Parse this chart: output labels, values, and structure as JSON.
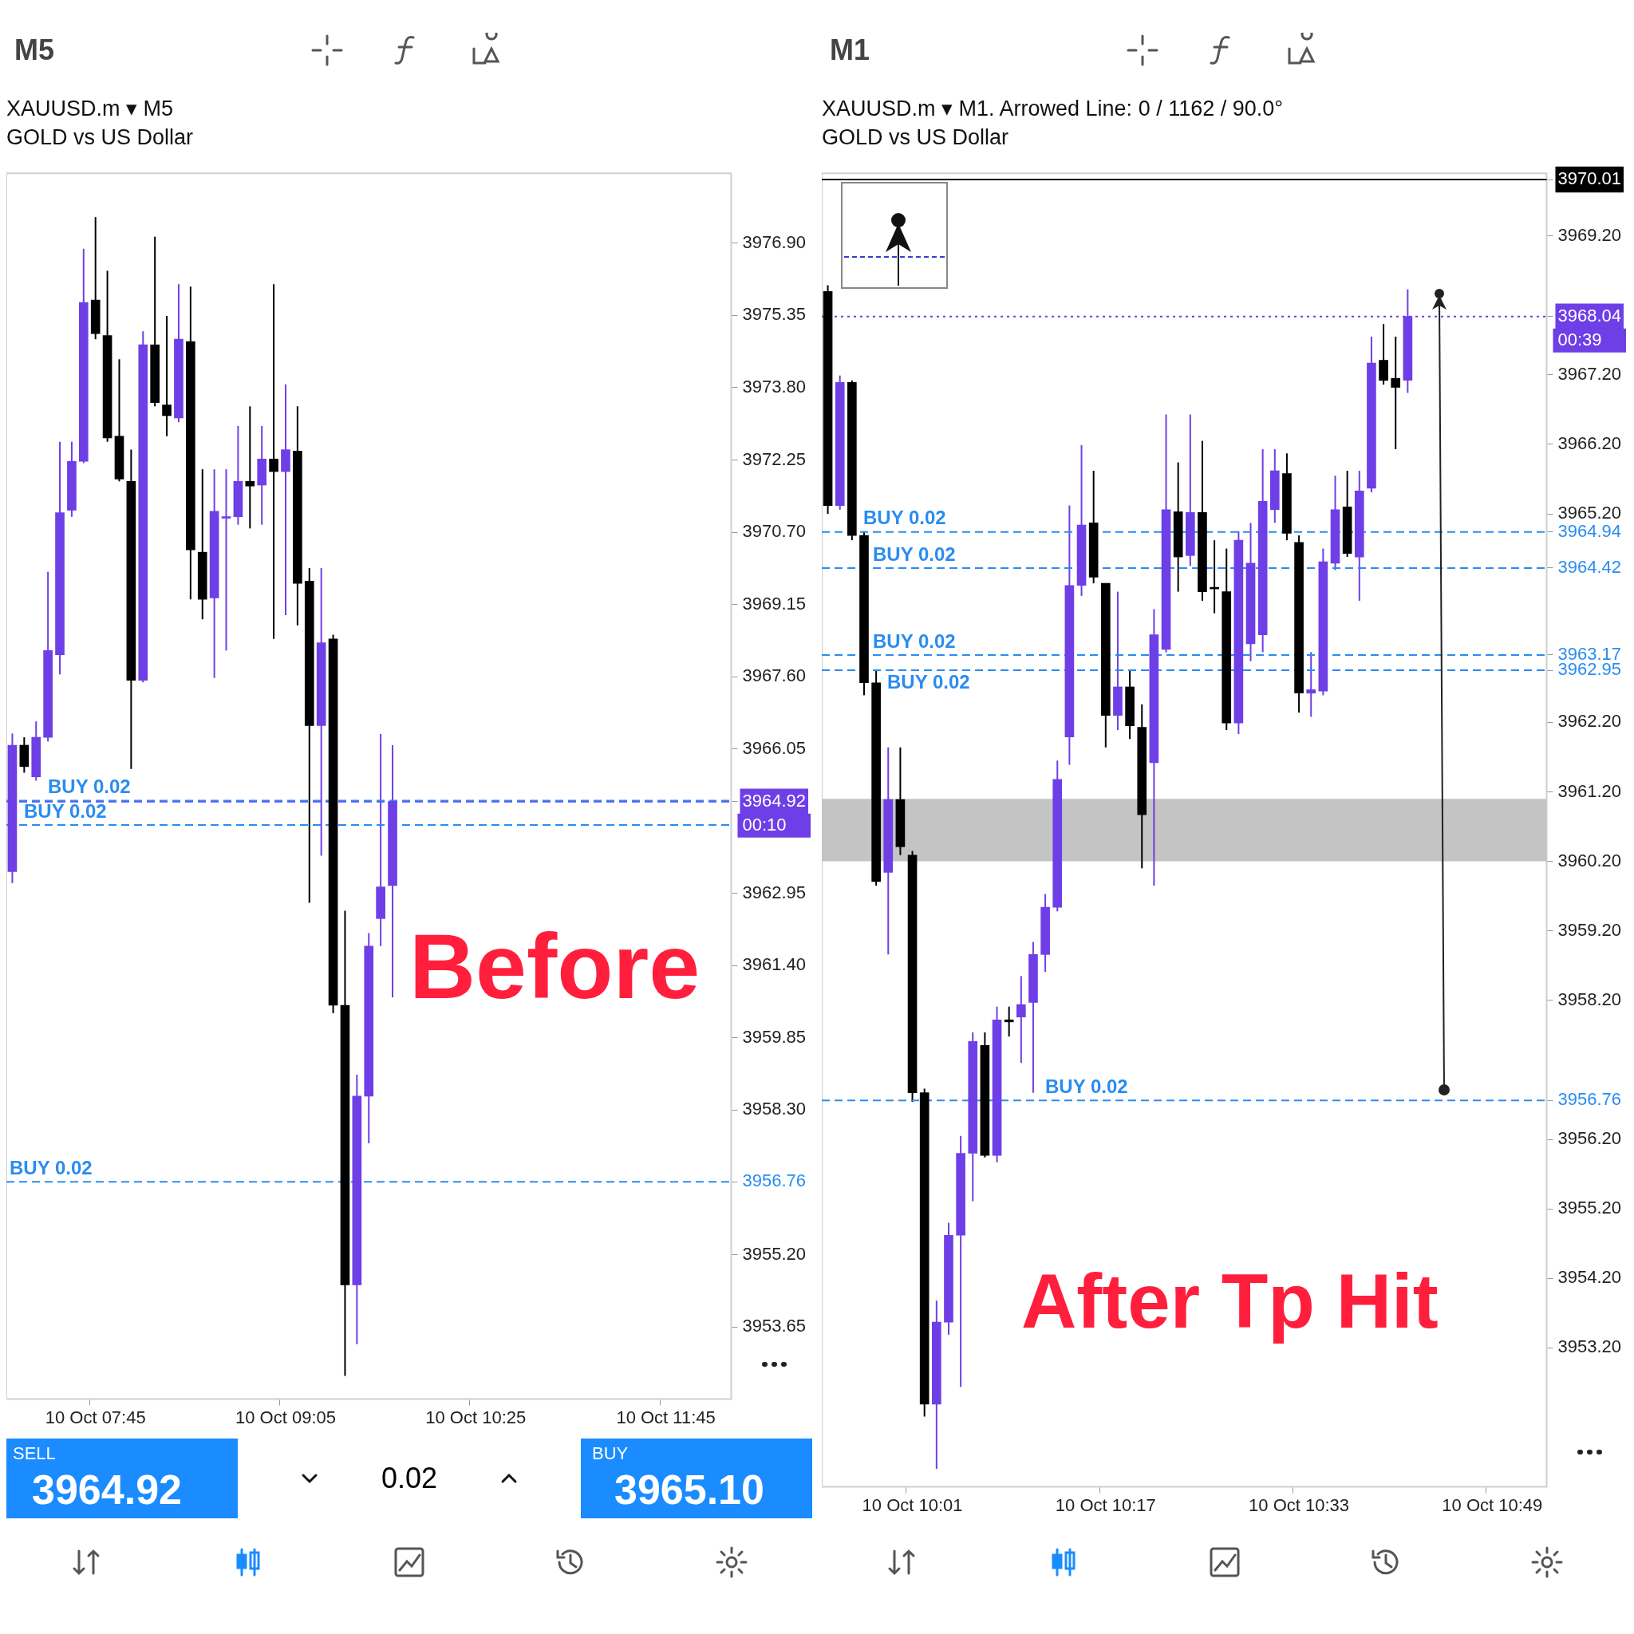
{
  "chart_data": [
    {
      "type": "candlestick",
      "title": "XAUUSD.m ▾ M5",
      "subtitle": "GOLD vs US Dollar",
      "categories": [
        null,
        null,
        null,
        null,
        null,
        null,
        null,
        "10 Oct 07:45",
        null,
        null,
        null,
        null,
        null,
        null,
        null,
        null,
        null,
        null,
        null,
        null,
        null,
        null,
        null,
        "10 Oct 09:05",
        null,
        null,
        null,
        null,
        null,
        null,
        null,
        null,
        null,
        null,
        null,
        null,
        null,
        null,
        null,
        "10 Oct 10:25",
        null,
        null,
        null,
        null,
        null,
        null,
        null,
        null,
        null,
        null,
        null,
        null,
        null,
        null,
        null,
        "10 Oct 11:45",
        null,
        null,
        null,
        null,
        null
      ],
      "ohlc": [
        [
          3963.42,
          3966.38,
          3963.17,
          3966.13
        ],
        [
          3966.13,
          3966.3,
          3965.54,
          3965.67
        ],
        [
          3965.45,
          3966.64,
          3965.37,
          3966.3
        ],
        [
          3966.3,
          3969.85,
          3966.21,
          3968.16
        ],
        [
          3968.07,
          3972.64,
          3967.65,
          3971.12
        ],
        [
          3971.17,
          3972.64,
          3971.03,
          3972.22
        ],
        [
          3972.22,
          3976.78,
          3972.18,
          3975.63
        ],
        [
          3975.68,
          3977.46,
          3974.84,
          3974.96
        ],
        [
          3974.92,
          3976.31,
          3972.64,
          3972.72
        ],
        [
          3972.76,
          3974.41,
          3971.79,
          3971.84
        ],
        [
          3971.79,
          3972.47,
          3965.62,
          3967.52
        ],
        [
          3967.52,
          3975.01,
          3967.48,
          3974.72
        ],
        [
          3974.72,
          3977.04,
          3973.4,
          3973.48
        ],
        [
          3973.43,
          3975.34,
          3972.76,
          3973.2
        ],
        [
          3973.15,
          3976.02,
          3973.06,
          3974.84
        ],
        [
          3974.79,
          3975.97,
          3969.26,
          3970.32
        ],
        [
          3970.27,
          3972.05,
          3968.83,
          3969.26
        ],
        [
          3969.29,
          3972.05,
          3967.57,
          3971.15
        ],
        [
          3971.0,
          3972.05,
          3968.16,
          3971.03
        ],
        [
          3971.03,
          3972.98,
          3970.86,
          3971.79
        ],
        [
          3971.79,
          3973.4,
          3970.78,
          3971.69
        ],
        [
          3971.71,
          3972.98,
          3970.86,
          3972.27
        ],
        [
          3972.27,
          3976.02,
          3968.41,
          3972.0
        ],
        [
          3972.0,
          3973.87,
          3968.92,
          3972.47
        ],
        [
          3972.44,
          3973.4,
          3968.7,
          3969.6
        ],
        [
          3969.65,
          3969.93,
          3962.75,
          3966.55
        ],
        [
          3966.55,
          3969.93,
          3963.76,
          3968.33
        ],
        [
          3968.41,
          3968.5,
          3960.38,
          3960.55
        ],
        [
          3960.55,
          3962.58,
          3952.6,
          3954.55
        ],
        [
          3954.55,
          3959.06,
          3953.28,
          3958.6
        ],
        [
          3958.6,
          3962.1,
          3957.59,
          3961.82
        ],
        [
          3962.41,
          3966.37,
          3961.82,
          3963.09
        ],
        [
          3963.12,
          3966.13,
          3960.72,
          3964.92
        ],
        null,
        null,
        null,
        null,
        null,
        null,
        null,
        null,
        null,
        null,
        null,
        null,
        null,
        null,
        null,
        null,
        null,
        null,
        null,
        null,
        null,
        null,
        null,
        null,
        null,
        null,
        null,
        null
      ],
      "colors": [
        "#6e3fe6",
        "#000000",
        "#6e3fe6",
        "#6e3fe6",
        "#6e3fe6",
        "#6e3fe6",
        "#6e3fe6",
        "#000000",
        "#000000",
        "#000000",
        "#000000",
        "#6e3fe6",
        "#000000",
        "#000000",
        "#6e3fe6",
        "#000000",
        "#000000",
        "#6e3fe6",
        "#6e3fe6",
        "#6e3fe6",
        "#000000",
        "#6e3fe6",
        "#000000",
        "#6e3fe6",
        "#000000",
        "#000000",
        "#6e3fe6",
        "#000000",
        "#000000",
        "#6e3fe6",
        "#6e3fe6",
        "#6e3fe6",
        "#6e3fe6",
        null,
        null,
        null,
        null,
        null,
        null,
        null,
        null,
        null,
        null,
        null,
        null,
        null,
        null,
        null,
        null,
        null,
        null,
        null,
        null,
        null,
        null,
        null,
        null,
        null,
        null,
        null,
        null
      ],
      "ylim": [
        3952.1,
        3978.4
      ],
      "yticks": [
        {
          "value": 3953.65,
          "label": "3953.65"
        },
        {
          "value": 3955.2,
          "label": "3955.20"
        },
        {
          "value": 3956.76,
          "label": "3956.76"
        },
        {
          "value": 3958.3,
          "label": "3958.30"
        },
        {
          "value": 3959.85,
          "label": "3959.85"
        },
        {
          "value": 3961.4,
          "label": "3961.40"
        },
        {
          "value": 3962.95,
          "label": "3962.95"
        },
        {
          "value": 3964.92,
          "label": "3964.92"
        },
        {
          "value": 3966.05,
          "label": "3966.05"
        },
        {
          "value": 3967.6,
          "label": "3967.60"
        },
        {
          "value": 3969.15,
          "label": "3969.15"
        },
        {
          "value": 3970.7,
          "label": "3970.70"
        },
        {
          "value": 3972.25,
          "label": "3972.25"
        },
        {
          "value": 3973.8,
          "label": "3973.80"
        },
        {
          "value": 3975.35,
          "label": "3975.35"
        },
        {
          "value": 3976.9,
          "label": "3976.90"
        }
      ],
      "ref_lines": [
        {
          "axis": "y",
          "value": 3964.92,
          "color": "#6e3fe6",
          "line_style": "dashed"
        },
        {
          "axis": "y",
          "value": 3964.94,
          "label": "BUY 0.02",
          "color": "#2a8cf0",
          "line_style": "dashed"
        },
        {
          "axis": "y",
          "value": 3964.42,
          "label": "BUY 0.02",
          "color": "#2a8cf0",
          "line_style": "dashed"
        },
        {
          "axis": "y",
          "value": 3956.76,
          "label": "BUY 0.02",
          "color": "#2a8cf0",
          "line_style": "dashed"
        }
      ],
      "annotations": [
        "Before",
        "00:10",
        "M5",
        "SELL",
        "3964.92",
        "0.02",
        "BUY",
        "3965.10"
      ],
      "legend": false
    },
    {
      "type": "candlestick",
      "title": "XAUUSD.m ▾ M1. Arrowed Line: 0 / 1162 / 90.0°",
      "subtitle": "GOLD vs US Dollar",
      "categories": [
        null,
        null,
        null,
        null,
        null,
        null,
        null,
        "10 Oct 10:01",
        null,
        null,
        null,
        null,
        null,
        null,
        null,
        null,
        null,
        null,
        null,
        null,
        null,
        null,
        null,
        "10 Oct 10:17",
        null,
        null,
        null,
        null,
        null,
        null,
        null,
        null,
        null,
        null,
        null,
        null,
        null,
        null,
        null,
        "10 Oct 10:33",
        null,
        null,
        null,
        null,
        null,
        null,
        null,
        null,
        null,
        null,
        null,
        null,
        null,
        null,
        null,
        "10 Oct 10:49",
        null,
        null,
        null,
        null
      ],
      "ohlc": [
        [
          3968.4,
          3968.49,
          3965.2,
          3965.32
        ],
        [
          3965.32,
          3967.19,
          3965.26,
          3967.09
        ],
        [
          3967.09,
          3967.12,
          3964.82,
          3964.89
        ],
        [
          3964.89,
          3964.95,
          3962.59,
          3962.77
        ],
        [
          3962.77,
          3962.96,
          3959.85,
          3959.91
        ],
        [
          3960.04,
          3961.84,
          3958.86,
          3961.09
        ],
        [
          3961.09,
          3961.84,
          3960.29,
          3960.41
        ],
        [
          3960.29,
          3960.35,
          3956.74,
          3956.87
        ],
        [
          3956.87,
          3956.93,
          3952.21,
          3952.39
        ],
        [
          3952.39,
          3953.88,
          3951.46,
          3953.57
        ],
        [
          3953.57,
          3955.0,
          3953.39,
          3954.82
        ],
        [
          3954.82,
          3956.25,
          3952.64,
          3956.0
        ],
        [
          3956.0,
          3957.74,
          3955.31,
          3957.61
        ],
        [
          3957.55,
          3957.74,
          3955.94,
          3955.97
        ],
        [
          3955.97,
          3958.11,
          3955.87,
          3957.92
        ],
        [
          3957.92,
          3958.11,
          3957.68,
          3957.89
        ],
        [
          3957.96,
          3958.55,
          3957.3,
          3958.14
        ],
        [
          3958.17,
          3959.04,
          3956.87,
          3958.86
        ],
        [
          3958.86,
          3959.73,
          3958.61,
          3959.54
        ],
        [
          3959.54,
          3961.65,
          3959.48,
          3961.38
        ],
        [
          3961.99,
          3965.32,
          3961.59,
          3964.17
        ],
        [
          3964.17,
          3966.19,
          3964.02,
          3965.04
        ],
        [
          3965.07,
          3965.82,
          3964.2,
          3964.29
        ],
        [
          3964.2,
          3964.2,
          3961.84,
          3962.3
        ],
        [
          3962.3,
          3964.08,
          3962.09,
          3962.71
        ],
        [
          3962.71,
          3962.96,
          3961.96,
          3962.15
        ],
        [
          3962.13,
          3962.46,
          3960.1,
          3960.87
        ],
        [
          3961.62,
          3963.83,
          3959.85,
          3963.46
        ],
        [
          3963.25,
          3966.63,
          3963.21,
          3965.26
        ],
        [
          3965.23,
          3965.94,
          3964.08,
          3964.58
        ],
        [
          3964.6,
          3966.63,
          3964.45,
          3965.22
        ],
        [
          3965.22,
          3966.25,
          3963.95,
          3964.08
        ],
        [
          3964.14,
          3964.82,
          3963.77,
          3964.12
        ],
        [
          3964.08,
          3964.7,
          3962.09,
          3962.19
        ],
        [
          3962.19,
          3964.95,
          3962.03,
          3964.82
        ],
        [
          3963.33,
          3965.07,
          3963.08,
          3964.49
        ],
        [
          3963.46,
          3966.13,
          3963.21,
          3965.38
        ],
        [
          3965.26,
          3966.13,
          3965.07,
          3965.82
        ],
        [
          3965.78,
          3966.07,
          3964.82,
          3964.92
        ],
        [
          3964.79,
          3964.89,
          3962.34,
          3962.62
        ],
        [
          3962.62,
          3963.21,
          3962.28,
          3962.67
        ],
        [
          3962.65,
          3964.7,
          3962.59,
          3964.51
        ],
        [
          3964.49,
          3965.75,
          3964.39,
          3965.26
        ],
        [
          3965.3,
          3965.82,
          3964.58,
          3964.63
        ],
        [
          3964.58,
          3965.82,
          3963.95,
          3965.53
        ],
        [
          3965.57,
          3967.75,
          3965.51,
          3967.37
        ],
        [
          3967.41,
          3967.93,
          3967.06,
          3967.12
        ],
        [
          3967.15,
          3967.75,
          3966.13,
          3967.02
        ],
        [
          3967.12,
          3968.43,
          3966.94,
          3968.04
        ],
        null,
        null,
        null,
        null,
        null,
        null,
        null,
        null,
        null,
        null,
        null
      ],
      "colors": [
        "#000000",
        "#6e3fe6",
        "#000000",
        "#000000",
        "#000000",
        "#6e3fe6",
        "#000000",
        "#000000",
        "#000000",
        "#6e3fe6",
        "#6e3fe6",
        "#6e3fe6",
        "#6e3fe6",
        "#000000",
        "#6e3fe6",
        "#000000",
        "#6e3fe6",
        "#6e3fe6",
        "#6e3fe6",
        "#6e3fe6",
        "#6e3fe6",
        "#6e3fe6",
        "#000000",
        "#000000",
        "#6e3fe6",
        "#000000",
        "#000000",
        "#6e3fe6",
        "#6e3fe6",
        "#000000",
        "#6e3fe6",
        "#000000",
        "#000000",
        "#000000",
        "#6e3fe6",
        "#6e3fe6",
        "#6e3fe6",
        "#6e3fe6",
        "#000000",
        "#000000",
        "#6e3fe6",
        "#6e3fe6",
        "#6e3fe6",
        "#000000",
        "#6e3fe6",
        "#6e3fe6",
        "#000000",
        "#000000",
        "#6e3fe6",
        null,
        null,
        null,
        null,
        null,
        null,
        null,
        null,
        null,
        null,
        null
      ],
      "ylim": [
        3951.2,
        3970.1
      ],
      "yticks": [
        {
          "value": 3953.2,
          "label": "3953.20"
        },
        {
          "value": 3954.2,
          "label": "3954.20"
        },
        {
          "value": 3955.2,
          "label": "3955.20"
        },
        {
          "value": 3956.2,
          "label": "3956.20"
        },
        {
          "value": 3956.76,
          "label": "3956.76"
        },
        {
          "value": 3958.2,
          "label": "3958.20"
        },
        {
          "value": 3959.2,
          "label": "3959.20"
        },
        {
          "value": 3960.2,
          "label": "3960.20"
        },
        {
          "value": 3961.2,
          "label": "3961.20"
        },
        {
          "value": 3962.2,
          "label": "3962.20"
        },
        {
          "value": 3962.95,
          "label": "3962.95"
        },
        {
          "value": 3963.17,
          "label": "3963.17"
        },
        {
          "value": 3964.42,
          "label": "3964.42"
        },
        {
          "value": 3964.94,
          "label": "3964.94"
        },
        {
          "value": 3965.2,
          "label": "3965.20"
        },
        {
          "value": 3966.2,
          "label": "3966.20"
        },
        {
          "value": 3967.2,
          "label": "3967.20"
        },
        {
          "value": 3968.04,
          "label": "3968.04"
        },
        {
          "value": 3969.2,
          "label": "3969.20"
        },
        {
          "value": 3970.01,
          "label": "3970.01"
        }
      ],
      "ref_lines": [
        {
          "axis": "y",
          "value": 3968.04,
          "color": "#6e3fe6",
          "line_style": "dotted"
        },
        {
          "axis": "y",
          "value": 3970.01,
          "color": "#000000",
          "line_style": "solid"
        },
        {
          "axis": "y",
          "value": 3964.94,
          "label": "BUY 0.02",
          "color": "#2a8cf0",
          "line_style": "dashed"
        },
        {
          "axis": "y",
          "value": 3964.42,
          "label": "BUY 0.02",
          "color": "#2a8cf0",
          "line_style": "dashed"
        },
        {
          "axis": "y",
          "value": 3963.17,
          "label": "BUY 0.02",
          "color": "#2a8cf0",
          "line_style": "dashed"
        },
        {
          "axis": "y",
          "value": 3962.95,
          "label": "BUY 0.02",
          "color": "#2a8cf0",
          "line_style": "dashed"
        },
        {
          "axis": "y",
          "value": 3956.76,
          "label": "BUY 0.02",
          "color": "#2a8cf0",
          "line_style": "dashed"
        }
      ],
      "bands": [
        {
          "axis": "y",
          "from": 3960.2,
          "to": 3961.1,
          "color": "#c4c4c4"
        }
      ],
      "annotations": [
        "After Tp Hit",
        "00:39",
        "M1"
      ],
      "legend": false
    }
  ]
}
